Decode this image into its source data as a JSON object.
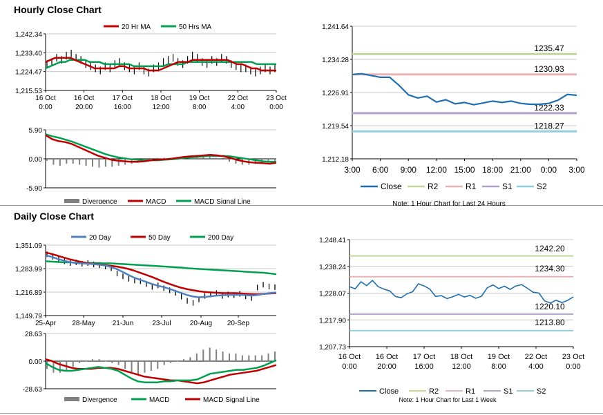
{
  "sections": {
    "hourly_title": "Hourly Close Chart",
    "daily_title": "Daily Close Chart"
  },
  "chart_data": [
    {
      "id": "hourly_price",
      "type": "line",
      "legend": [
        "20 Hr MA",
        "50 Hrs MA"
      ],
      "colors": {
        "price": "#000000",
        "ma_short": "#c00000",
        "ma_long": "#00a050"
      },
      "yticks": [
        "1,242.34",
        "1,233.40",
        "1,224.47",
        "1,215.53"
      ],
      "ylim": [
        1215.53,
        1242.34
      ],
      "xticks": [
        [
          "16 Oct",
          "0:00"
        ],
        [
          "16 Oct",
          "20:00"
        ],
        [
          "17 Oct",
          "16:00"
        ],
        [
          "18 Oct",
          "12:00"
        ],
        [
          "19 Oct",
          "8:00"
        ],
        [
          "22 Oct",
          "4:00"
        ],
        [
          "23 Oct",
          "0:00"
        ]
      ],
      "series": [
        {
          "name": "Close",
          "values": [
            1228,
            1229,
            1231,
            1230,
            1232,
            1233,
            1231,
            1230,
            1228,
            1227,
            1226,
            1225,
            1227,
            1226,
            1228,
            1229,
            1227,
            1226,
            1225,
            1227,
            1225,
            1224,
            1226,
            1227,
            1229,
            1230,
            1231,
            1229,
            1228,
            1230,
            1232,
            1231,
            1229,
            1228,
            1230,
            1229,
            1231,
            1230,
            1228,
            1227,
            1226,
            1226,
            1225,
            1224,
            1225,
            1226,
            1225,
            1226
          ]
        },
        {
          "name": "20 Hr MA",
          "values": [
            1229,
            1230,
            1231,
            1231,
            1231,
            1231,
            1230,
            1229,
            1228,
            1227,
            1226,
            1226,
            1226,
            1226,
            1226,
            1227,
            1227,
            1226,
            1226,
            1226,
            1226,
            1225,
            1225,
            1225,
            1226,
            1227,
            1228,
            1229,
            1229,
            1229,
            1230,
            1230,
            1230,
            1230,
            1230,
            1230,
            1230,
            1230,
            1229,
            1228,
            1228,
            1227,
            1226,
            1226,
            1225,
            1225,
            1225,
            1225
          ]
        },
        {
          "name": "50 Hrs MA",
          "values": [
            1226,
            1227,
            1228,
            1229,
            1229,
            1230,
            1230,
            1230,
            1230,
            1229,
            1229,
            1229,
            1228,
            1228,
            1228,
            1228,
            1228,
            1228,
            1227,
            1227,
            1227,
            1227,
            1227,
            1227,
            1227,
            1228,
            1228,
            1228,
            1228,
            1229,
            1229,
            1229,
            1229,
            1229,
            1229,
            1229,
            1229,
            1229,
            1229,
            1229,
            1229,
            1229,
            1229,
            1228,
            1228,
            1228,
            1228,
            1228
          ]
        }
      ]
    },
    {
      "id": "hourly_macd",
      "type": "line",
      "legend": [
        "Divergence",
        "MACD",
        "MACD Signal Line"
      ],
      "yticks": [
        "5.90",
        "0.00",
        "-5.90"
      ],
      "ylim": [
        -5.9,
        5.9
      ],
      "series": [
        {
          "name": "MACD",
          "values": [
            4.8,
            4.0,
            3.6,
            3.4,
            3.0,
            2.4,
            1.8,
            1.2,
            0.6,
            0.2,
            -0.2,
            -0.4,
            -0.5,
            -0.6,
            -0.6,
            -0.5,
            -0.3,
            -0.2,
            -0.1,
            0.0,
            0.2,
            0.4,
            0.5,
            0.6,
            0.7,
            0.8,
            0.7,
            0.5,
            0.2,
            -0.2,
            -0.5,
            -0.7,
            -0.8,
            -0.9,
            -1.0,
            -0.8
          ]
        },
        {
          "name": "MACD Signal Line",
          "values": [
            5.0,
            4.6,
            4.3,
            3.9,
            3.5,
            3.0,
            2.5,
            2.0,
            1.5,
            1.0,
            0.6,
            0.3,
            0.1,
            -0.1,
            -0.2,
            -0.3,
            -0.3,
            -0.3,
            -0.2,
            -0.1,
            0.0,
            0.2,
            0.3,
            0.4,
            0.5,
            0.6,
            0.6,
            0.6,
            0.5,
            0.3,
            0.1,
            -0.1,
            -0.3,
            -0.5,
            -0.6,
            -0.6
          ]
        }
      ]
    },
    {
      "id": "hourly_levels",
      "type": "line",
      "yticks": [
        "1,241.64",
        "1,234.28",
        "1,226.91",
        "1,219.54",
        "1,212.18"
      ],
      "ylim": [
        1212.18,
        1241.64
      ],
      "xticks": [
        "3:00",
        "6:00",
        "9:00",
        "12:00",
        "15:00",
        "18:00",
        "21:00",
        "0:00",
        "3:00"
      ],
      "levels": [
        {
          "name": "R2",
          "value": 1235.47,
          "label": "1235.47",
          "color": "#c4d79b"
        },
        {
          "name": "R1",
          "value": 1230.93,
          "label": "1230.93",
          "color": "#e6b4b4"
        },
        {
          "name": "S1",
          "value": 1222.33,
          "label": "1222.33",
          "color": "#b1a0c7"
        },
        {
          "name": "S2",
          "value": 1218.27,
          "label": "1218.27",
          "color": "#92cddc"
        }
      ],
      "series": [
        {
          "name": "Close",
          "values": [
            1230.9,
            1231.1,
            1230.7,
            1230.3,
            1230.3,
            1228.5,
            1226.4,
            1225.7,
            1226.1,
            1224.8,
            1225.3,
            1224.4,
            1224.7,
            1224.2,
            1224.6,
            1225.0,
            1224.7,
            1225.0,
            1224.5,
            1224.3,
            1224.3,
            1224.5,
            1225.2,
            1226.5,
            1226.3
          ]
        }
      ],
      "legend": [
        "Close",
        "R2",
        "R1",
        "S1",
        "S2"
      ],
      "note": "Note: 1 Hour Chart for Last 24 Hours"
    },
    {
      "id": "daily_price",
      "type": "line",
      "legend": [
        "20 Day",
        "50 Day",
        "200 Day"
      ],
      "yticks": [
        "1,351.09",
        "1,283.99",
        "1,216.89",
        "1,149.79"
      ],
      "ylim": [
        1149.79,
        1351.09
      ],
      "xticks": [
        "25-Apr",
        "28-May",
        "21-Jun",
        "23-Jul",
        "20-Aug",
        "20-Sep"
      ],
      "series": [
        {
          "name": "Close",
          "values": [
            1325,
            1318,
            1310,
            1305,
            1300,
            1302,
            1298,
            1300,
            1296,
            1294,
            1290,
            1285,
            1270,
            1262,
            1255,
            1250,
            1248,
            1240,
            1232,
            1236,
            1228,
            1222,
            1215,
            1204,
            1192,
            1186,
            1196,
            1206,
            1210,
            1214,
            1206,
            1210,
            1208,
            1212,
            1205,
            1200,
            1230,
            1238,
            1233,
            1231
          ]
        },
        {
          "name": "20 Day",
          "values": [
            1322,
            1318,
            1312,
            1307,
            1303,
            1300,
            1299,
            1298,
            1297,
            1295,
            1293,
            1289,
            1283,
            1275,
            1266,
            1258,
            1252,
            1246,
            1240,
            1235,
            1231,
            1226,
            1220,
            1214,
            1208,
            1204,
            1202,
            1203,
            1205,
            1207,
            1208,
            1209,
            1209,
            1209,
            1208,
            1207,
            1209,
            1212,
            1214,
            1216
          ]
        },
        {
          "name": "50 Day",
          "values": [
            1330,
            1326,
            1321,
            1316,
            1311,
            1307,
            1303,
            1300,
            1298,
            1296,
            1294,
            1292,
            1290,
            1287,
            1283,
            1278,
            1272,
            1266,
            1260,
            1253,
            1246,
            1240,
            1234,
            1229,
            1225,
            1222,
            1219,
            1217,
            1216,
            1215,
            1214,
            1214,
            1214,
            1213,
            1212,
            1211,
            1211,
            1212,
            1213,
            1214
          ]
        },
        {
          "name": "200 Day",
          "values": [
            1305,
            1304,
            1303,
            1302,
            1302,
            1301,
            1301,
            1300,
            1300,
            1300,
            1299,
            1299,
            1298,
            1297,
            1296,
            1295,
            1294,
            1293,
            1292,
            1291,
            1290,
            1289,
            1288,
            1287,
            1285,
            1284,
            1283,
            1282,
            1281,
            1280,
            1279,
            1278,
            1277,
            1276,
            1275,
            1274,
            1273,
            1272,
            1270,
            1268
          ]
        }
      ]
    },
    {
      "id": "daily_macd",
      "type": "line",
      "legend": [
        "Divergence",
        "MACD",
        "MACD Signal Line"
      ],
      "yticks": [
        "28.63",
        "0.00",
        "-28.63"
      ],
      "ylim": [
        -28.63,
        28.63
      ],
      "series": [
        {
          "name": "MACD",
          "values": [
            -2,
            -6,
            -9,
            -10,
            -10,
            -9,
            -8,
            -7,
            -6,
            -7,
            -8,
            -10,
            -14,
            -18,
            -21,
            -22,
            -22,
            -22,
            -21,
            -21,
            -20,
            -20,
            -20,
            -19,
            -16,
            -13,
            -12,
            -11,
            -10,
            -9,
            -9,
            -8,
            -7,
            -5,
            -2,
            1
          ]
        },
        {
          "name": "MACD Signal Line",
          "values": [
            2,
            0,
            -3,
            -5,
            -7,
            -8,
            -8,
            -8,
            -7,
            -7,
            -7,
            -8,
            -10,
            -12,
            -14,
            -16,
            -17,
            -18,
            -19,
            -20,
            -20,
            -21,
            -22,
            -23,
            -22,
            -20,
            -18,
            -16,
            -14,
            -13,
            -12,
            -11,
            -10,
            -8,
            -6,
            -4
          ]
        }
      ]
    },
    {
      "id": "daily_levels",
      "type": "line",
      "yticks": [
        "1,248.41",
        "1,238.24",
        "1,228.07",
        "1,217.90",
        "1,207.73"
      ],
      "ylim": [
        1207.73,
        1248.41
      ],
      "xticks": [
        [
          "16 Oct",
          "0:00"
        ],
        [
          "16 Oct",
          "20:00"
        ],
        [
          "17 Oct",
          "16:00"
        ],
        [
          "18 Oct",
          "12:00"
        ],
        [
          "19 Oct",
          "8:00"
        ],
        [
          "22 Oct",
          "4:00"
        ],
        [
          "23 Oct",
          "0:00"
        ]
      ],
      "levels": [
        {
          "name": "R2",
          "value": 1242.2,
          "label": "1242.20",
          "color": "#c4d79b"
        },
        {
          "name": "R1",
          "value": 1234.3,
          "label": "1234.30",
          "color": "#e6b4b4"
        },
        {
          "name": "S1",
          "value": 1220.1,
          "label": "1220.10",
          "color": "#b1a0c7"
        },
        {
          "name": "S2",
          "value": 1213.8,
          "label": "1213.80",
          "color": "#92cddc"
        }
      ],
      "series": [
        {
          "name": "Close",
          "values": [
            1230.5,
            1229.7,
            1232.4,
            1230.9,
            1232.9,
            1230.5,
            1229.6,
            1228.9,
            1226.8,
            1226.3,
            1227.8,
            1228.6,
            1231.6,
            1230.8,
            1229.6,
            1226.8,
            1227.1,
            1226.0,
            1226.7,
            1227.6,
            1226.6,
            1227.2,
            1226.1,
            1226.9,
            1230.1,
            1231.2,
            1229.8,
            1230.7,
            1229.5,
            1230.8,
            1231.3,
            1229.9,
            1228.4,
            1228.1,
            1225.1,
            1224.3,
            1225.4,
            1224.5,
            1225.3,
            1226.6
          ]
        }
      ],
      "legend": [
        "Close",
        "R2",
        "R1",
        "S1",
        "S2"
      ],
      "note": "Note: 1 Hour Chart for Last 1 Week"
    }
  ]
}
